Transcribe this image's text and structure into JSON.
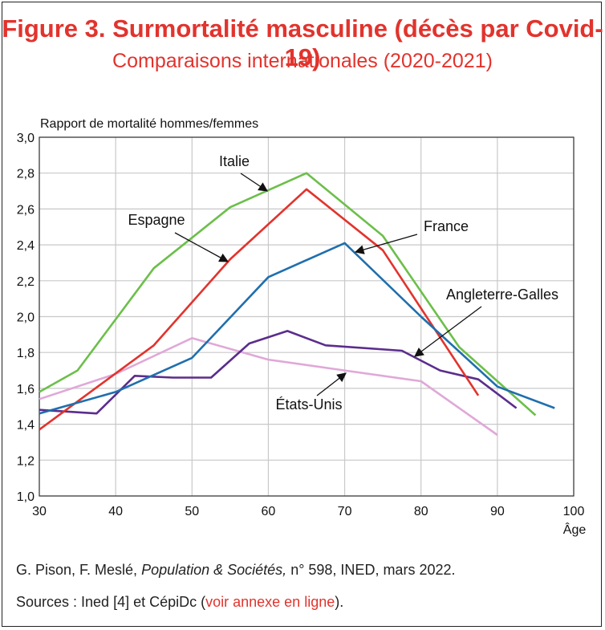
{
  "header": {
    "title": "Figure 3. Surmortalité masculine (décès par Covid-19)",
    "subtitle": "Comparaisons internationales (2020-2021)"
  },
  "footer": {
    "credit_prefix": "G. Pison, F. Meslé, ",
    "credit_journal": "Population & Sociétés,",
    "credit_suffix": " n° 598, INED, mars 2022.",
    "sources_prefix": "Sources : Ined [4] et CépiDc (",
    "sources_link": "voir annexe en ligne",
    "sources_suffix": ")."
  },
  "chart_data": {
    "type": "line",
    "ylabel": "Rapport de mortalité hommes/femmes",
    "xlabel": "Âge",
    "xlim": [
      30,
      100
    ],
    "ylim": [
      1.0,
      3.0
    ],
    "x_ticks": [
      "30",
      "40",
      "50",
      "60",
      "70",
      "80",
      "90",
      "100"
    ],
    "y_ticks": [
      "1,0",
      "1,2",
      "1,4",
      "1,6",
      "1,8",
      "2,0",
      "2,2",
      "2,4",
      "2,6",
      "2,8",
      "3,0"
    ],
    "grid": true,
    "series": [
      {
        "name": "Italie",
        "color": "#6cbf4a",
        "x": [
          30,
          35,
          45,
          55,
          65,
          75,
          85,
          95
        ],
        "y": [
          1.58,
          1.7,
          2.27,
          2.61,
          2.8,
          2.45,
          1.83,
          1.45
        ]
      },
      {
        "name": "Espagne",
        "color": "#e2332d",
        "x": [
          30,
          45,
          55,
          65,
          75,
          87.5
        ],
        "y": [
          1.37,
          1.84,
          2.32,
          2.71,
          2.37,
          1.56
        ]
      },
      {
        "name": "France",
        "color": "#1f6fad",
        "x": [
          30,
          40,
          50,
          60,
          70,
          80,
          90,
          97.5
        ],
        "y": [
          1.46,
          1.58,
          1.77,
          2.22,
          2.41,
          2.0,
          1.61,
          1.49
        ]
      },
      {
        "name": "Angleterre-Galles",
        "color": "#5b2d8c",
        "x": [
          30,
          37.5,
          42.5,
          47.5,
          52.5,
          57.5,
          62.5,
          67.5,
          77.5,
          82.5,
          87.5,
          92.5
        ],
        "y": [
          1.48,
          1.46,
          1.67,
          1.66,
          1.66,
          1.85,
          1.92,
          1.84,
          1.81,
          1.7,
          1.65,
          1.49
        ]
      },
      {
        "name": "États-Unis",
        "color": "#e0a8d8",
        "x": [
          30,
          40,
          50,
          60,
          70,
          80,
          90
        ],
        "y": [
          1.54,
          1.68,
          1.88,
          1.76,
          1.7,
          1.64,
          1.34
        ]
      }
    ],
    "annotations": [
      {
        "text": "Italie",
        "series": "Italie"
      },
      {
        "text": "Espagne",
        "series": "Espagne"
      },
      {
        "text": "France",
        "series": "France"
      },
      {
        "text": "Angleterre-Galles",
        "series": "Angleterre-Galles"
      },
      {
        "text": "États-Unis",
        "series": "États-Unis"
      }
    ]
  }
}
